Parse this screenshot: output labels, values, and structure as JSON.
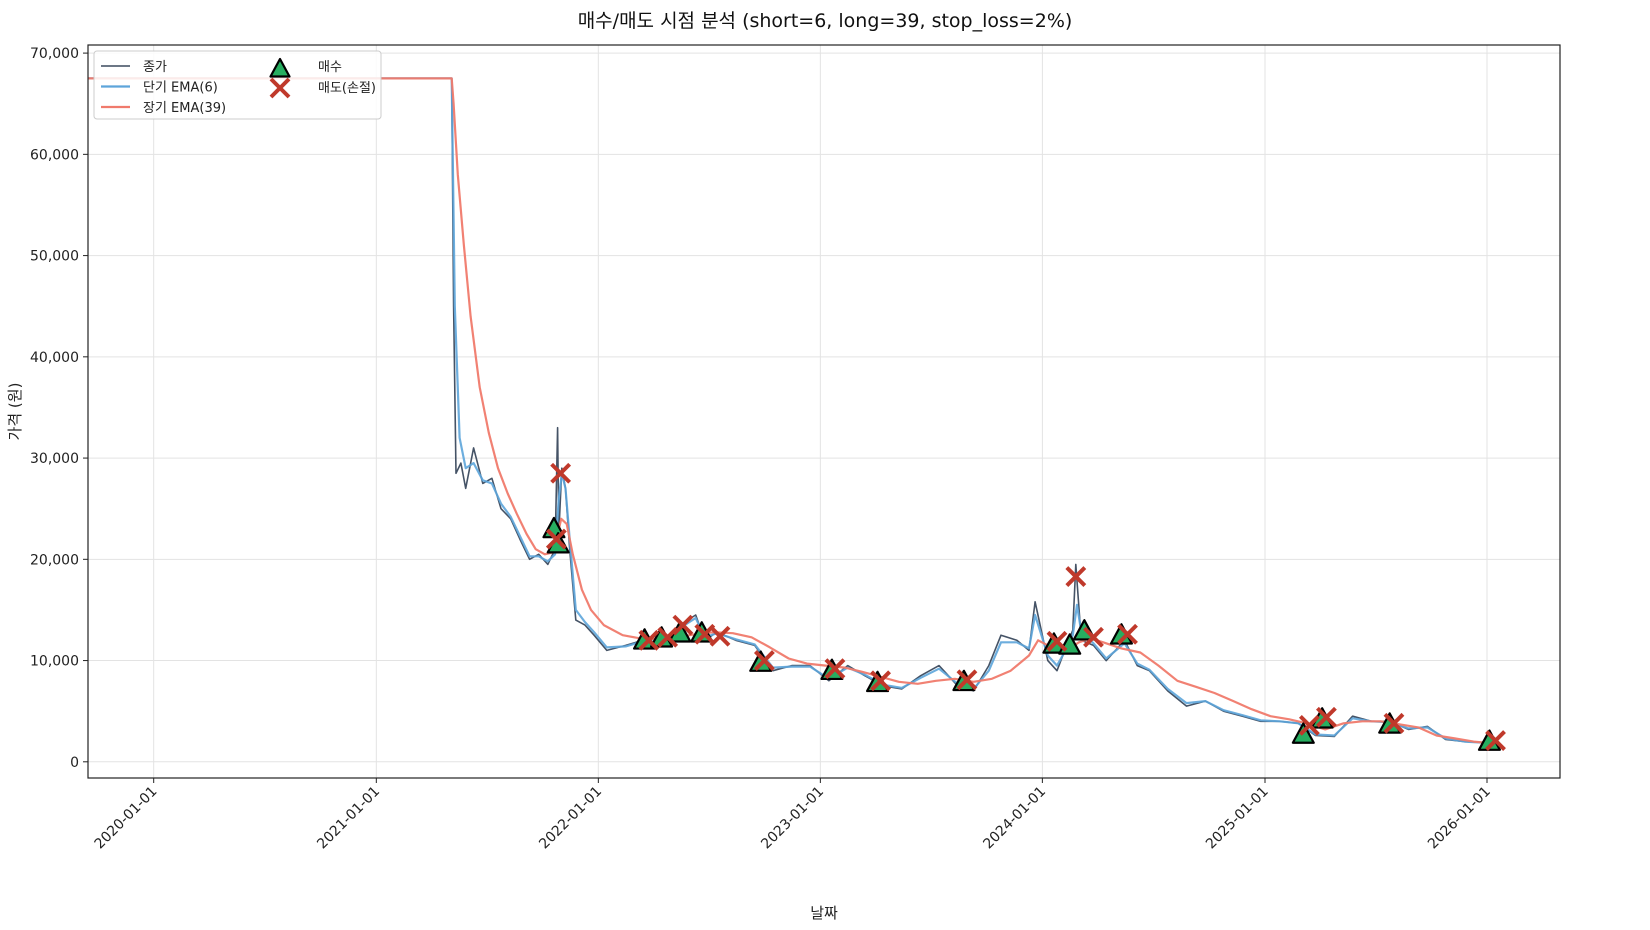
{
  "chart_data": {
    "type": "line",
    "title": "매수/매도 시점 분석 (short=6, long=39, stop_loss=2%)",
    "xlabel": "날짜",
    "ylabel": "가격 (원)",
    "ylim": [
      -1600,
      70800
    ],
    "xlim": [
      "2019-09-15",
      "2026-05-01"
    ],
    "grid": true,
    "legend_position": "top-left",
    "x_ticks": [
      "2020-01-01",
      "2021-01-01",
      "2022-01-01",
      "2023-01-01",
      "2024-01-01",
      "2025-01-01",
      "2026-01-01"
    ],
    "y_ticks": [
      0,
      10000,
      20000,
      30000,
      40000,
      50000,
      60000,
      70000
    ],
    "y_tick_labels": [
      "0",
      "10,000",
      "20,000",
      "30,000",
      "40,000",
      "50,000",
      "60,000",
      "70,000"
    ],
    "colors": {
      "close": "#3b4a5e",
      "short": "#5da5da",
      "long": "#f07a6c",
      "buy": "#27ae60",
      "sell": "#c0392b"
    },
    "series": [
      {
        "name": "종가",
        "x": [
          "2019-09-15",
          "2021-05-05",
          "2021-05-08",
          "2021-05-12",
          "2021-05-20",
          "2021-05-28",
          "2021-06-10",
          "2021-06-25",
          "2021-07-10",
          "2021-07-25",
          "2021-08-10",
          "2021-08-25",
          "2021-09-10",
          "2021-09-25",
          "2021-10-10",
          "2021-10-22",
          "2021-10-26",
          "2021-10-28",
          "2021-11-02",
          "2021-11-08",
          "2021-11-15",
          "2021-11-25",
          "2021-12-10",
          "2021-12-25",
          "2022-01-15",
          "2022-02-15",
          "2022-03-15",
          "2022-04-15",
          "2022-05-15",
          "2022-06-10",
          "2022-06-25",
          "2022-07-15",
          "2022-08-15",
          "2022-09-15",
          "2022-10-15",
          "2022-11-15",
          "2022-12-15",
          "2023-01-15",
          "2023-02-15",
          "2023-03-15",
          "2023-04-15",
          "2023-05-15",
          "2023-06-15",
          "2023-07-15",
          "2023-08-15",
          "2023-09-10",
          "2023-10-05",
          "2023-10-25",
          "2023-11-20",
          "2023-12-10",
          "2023-12-20",
          "2024-01-10",
          "2024-01-25",
          "2024-02-10",
          "2024-02-20",
          "2024-02-25",
          "2024-03-05",
          "2024-03-25",
          "2024-04-15",
          "2024-05-15",
          "2024-06-05",
          "2024-06-25",
          "2024-07-25",
          "2024-08-25",
          "2024-09-25",
          "2024-10-25",
          "2024-11-25",
          "2024-12-25",
          "2025-01-25",
          "2025-02-25",
          "2025-03-25",
          "2025-04-25",
          "2025-05-25",
          "2025-06-25",
          "2025-07-25",
          "2025-08-25",
          "2025-09-25",
          "2025-10-25",
          "2025-11-25",
          "2025-12-25",
          "2026-01-15"
        ],
        "y": [
          67500,
          67500,
          45000,
          28500,
          29500,
          27000,
          31000,
          27500,
          28000,
          25000,
          24000,
          22000,
          20000,
          20500,
          19500,
          21000,
          33000,
          22500,
          29000,
          27000,
          21000,
          14000,
          13500,
          12500,
          11000,
          11500,
          12000,
          11800,
          13500,
          14500,
          12000,
          12800,
          12000,
          11500,
          9000,
          9500,
          9500,
          8000,
          9500,
          8500,
          7500,
          7200,
          8500,
          9500,
          7500,
          7000,
          9500,
          12500,
          12000,
          11000,
          15800,
          10000,
          9000,
          11500,
          13000,
          19500,
          12000,
          11500,
          10000,
          12000,
          9500,
          9000,
          7000,
          5500,
          6000,
          5000,
          4500,
          4000,
          4000,
          3800,
          2600,
          2500,
          4500,
          4000,
          4000,
          3200,
          3500,
          2200,
          2000,
          1900,
          1700
        ]
      },
      {
        "name": "단기 EMA(6)",
        "x": [
          "2019-09-15",
          "2021-05-05",
          "2021-05-10",
          "2021-05-18",
          "2021-05-28",
          "2021-06-10",
          "2021-06-25",
          "2021-07-10",
          "2021-07-25",
          "2021-08-10",
          "2021-08-25",
          "2021-09-10",
          "2021-09-25",
          "2021-10-10",
          "2021-10-22",
          "2021-10-28",
          "2021-11-02",
          "2021-11-08",
          "2021-11-15",
          "2021-11-25",
          "2021-12-10",
          "2021-12-25",
          "2022-01-15",
          "2022-02-15",
          "2022-03-15",
          "2022-04-15",
          "2022-05-15",
          "2022-06-10",
          "2022-06-25",
          "2022-07-15",
          "2022-08-15",
          "2022-09-15",
          "2022-10-15",
          "2022-11-15",
          "2022-12-15",
          "2023-01-15",
          "2023-02-15",
          "2023-03-15",
          "2023-04-15",
          "2023-05-15",
          "2023-06-15",
          "2023-07-15",
          "2023-08-15",
          "2023-09-10",
          "2023-10-05",
          "2023-10-25",
          "2023-11-20",
          "2023-12-10",
          "2023-12-20",
          "2024-01-10",
          "2024-01-25",
          "2024-02-10",
          "2024-02-20",
          "2024-02-27",
          "2024-03-05",
          "2024-03-25",
          "2024-04-15",
          "2024-05-15",
          "2024-06-05",
          "2024-06-25",
          "2024-07-25",
          "2024-08-25",
          "2024-09-25",
          "2024-10-25",
          "2024-11-25",
          "2024-12-25",
          "2025-01-25",
          "2025-02-25",
          "2025-03-25",
          "2025-04-25",
          "2025-05-25",
          "2025-06-25",
          "2025-07-25",
          "2025-08-25",
          "2025-09-25",
          "2025-10-25",
          "2025-11-25",
          "2025-12-25",
          "2026-01-15"
        ],
        "y": [
          67500,
          67500,
          45000,
          32000,
          29000,
          29500,
          27800,
          27500,
          25500,
          24200,
          22300,
          20300,
          20300,
          19800,
          20500,
          26000,
          28500,
          27000,
          22000,
          15000,
          13800,
          12800,
          11300,
          11400,
          11900,
          11800,
          13200,
          14200,
          12300,
          12700,
          12100,
          11600,
          9300,
          9400,
          9400,
          8200,
          9300,
          8600,
          7600,
          7300,
          8300,
          9200,
          7700,
          7200,
          9000,
          11800,
          11800,
          11200,
          14500,
          10500,
          9500,
          11200,
          12500,
          15500,
          12800,
          11700,
          10200,
          11700,
          9700,
          9100,
          7200,
          5800,
          6000,
          5100,
          4600,
          4100,
          4000,
          3800,
          2700,
          2600,
          4300,
          4000,
          3900,
          3300,
          3400,
          2300,
          2000,
          1900,
          1750
        ]
      },
      {
        "name": "장기 EMA(39)",
        "x": [
          "2019-09-15",
          "2021-05-05",
          "2021-05-08",
          "2021-05-15",
          "2021-05-25",
          "2021-06-05",
          "2021-06-20",
          "2021-07-05",
          "2021-07-20",
          "2021-08-05",
          "2021-08-20",
          "2021-09-05",
          "2021-09-20",
          "2021-10-05",
          "2021-10-20",
          "2021-11-01",
          "2021-11-10",
          "2021-11-20",
          "2021-12-05",
          "2021-12-20",
          "2022-01-10",
          "2022-02-10",
          "2022-03-10",
          "2022-04-10",
          "2022-05-10",
          "2022-06-10",
          "2022-07-10",
          "2022-08-10",
          "2022-09-10",
          "2022-10-10",
          "2022-11-10",
          "2022-12-10",
          "2023-01-10",
          "2023-02-10",
          "2023-03-10",
          "2023-04-10",
          "2023-05-10",
          "2023-06-10",
          "2023-07-10",
          "2023-08-10",
          "2023-09-10",
          "2023-10-10",
          "2023-11-10",
          "2023-12-10",
          "2023-12-25",
          "2024-01-10",
          "2024-01-25",
          "2024-02-10",
          "2024-03-01",
          "2024-03-20",
          "2024-04-10",
          "2024-05-10",
          "2024-06-10",
          "2024-07-10",
          "2024-08-10",
          "2024-09-10",
          "2024-10-10",
          "2024-11-10",
          "2024-12-10",
          "2025-01-10",
          "2025-02-10",
          "2025-03-10",
          "2025-04-10",
          "2025-05-10",
          "2025-06-10",
          "2025-07-10",
          "2025-08-10",
          "2025-09-10",
          "2025-10-10",
          "2025-11-10",
          "2025-12-10",
          "2026-01-15"
        ],
        "y": [
          67500,
          67500,
          65000,
          58000,
          51000,
          44000,
          37000,
          32500,
          29000,
          26500,
          24500,
          22500,
          21000,
          20500,
          20700,
          24000,
          23500,
          20500,
          17000,
          15000,
          13500,
          12500,
          12200,
          12100,
          12300,
          12600,
          12800,
          12700,
          12300,
          11300,
          10200,
          9700,
          9500,
          9300,
          8900,
          8400,
          7900,
          7700,
          8000,
          8200,
          7900,
          8200,
          9000,
          10500,
          12000,
          11500,
          11200,
          11000,
          11800,
          12200,
          11800,
          11200,
          10800,
          9500,
          8000,
          7400,
          6800,
          6000,
          5200,
          4500,
          4200,
          3800,
          3200,
          3800,
          4000,
          4000,
          3700,
          3400,
          2600,
          2300,
          2000,
          1800
        ]
      }
    ],
    "buy_signals": {
      "name": "매수",
      "x": [
        "2021-10-20",
        "2021-10-27",
        "2022-03-18",
        "2022-04-15",
        "2022-05-15",
        "2022-06-20",
        "2022-09-25",
        "2023-01-20",
        "2023-04-05",
        "2023-08-25",
        "2024-01-20",
        "2024-02-15",
        "2024-03-10",
        "2024-05-10",
        "2025-03-05",
        "2025-04-05",
        "2025-07-25",
        "2026-01-05"
      ],
      "y": [
        23000,
        21500,
        12000,
        12200,
        12700,
        12700,
        9800,
        9000,
        7800,
        7900,
        11600,
        11500,
        12900,
        12500,
        2700,
        4200,
        3700,
        2000
      ]
    },
    "sell_signals": {
      "name": "매도(손절)",
      "x": [
        "2021-10-24",
        "2021-10-31",
        "2022-03-25",
        "2022-04-25",
        "2022-05-20",
        "2022-06-25",
        "2022-07-20",
        "2022-10-01",
        "2023-01-25",
        "2023-04-10",
        "2023-08-30",
        "2024-01-25",
        "2024-02-25",
        "2024-03-25",
        "2024-05-20",
        "2025-03-15",
        "2025-04-12",
        "2025-08-01",
        "2026-01-15"
      ],
      "y": [
        22000,
        28500,
        12000,
        12300,
        13500,
        12600,
        12400,
        10000,
        9200,
        8000,
        8100,
        11900,
        18300,
        12300,
        12600,
        3600,
        4400,
        3800,
        2100
      ]
    }
  }
}
